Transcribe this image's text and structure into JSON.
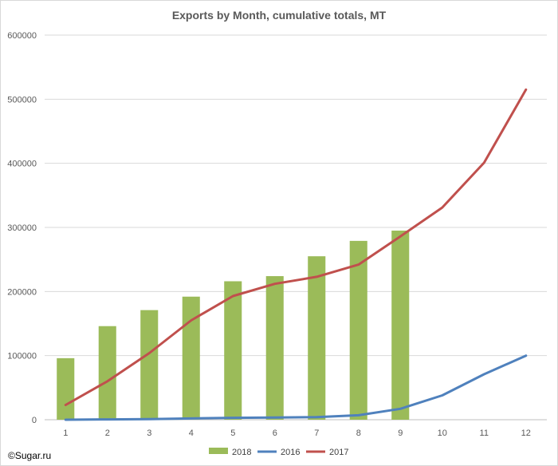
{
  "chart_data": {
    "type": "bar",
    "title": "Exports by Month, cumulative totals, MT",
    "xlabel": "",
    "ylabel": "",
    "categories": [
      "1",
      "2",
      "3",
      "4",
      "5",
      "6",
      "7",
      "8",
      "9",
      "10",
      "11",
      "12"
    ],
    "ylim": [
      0,
      600000
    ],
    "yticks": [
      0,
      100000,
      200000,
      300000,
      400000,
      500000,
      600000
    ],
    "grid": true,
    "legend_position": "bottom",
    "series": [
      {
        "name": "2018",
        "type": "bar",
        "color": "#9bbb59",
        "values": [
          96000,
          146000,
          171000,
          192000,
          216000,
          224000,
          255000,
          279000,
          295000,
          null,
          null,
          null
        ]
      },
      {
        "name": "2016",
        "type": "line",
        "color": "#4f81bd",
        "values": [
          0,
          500,
          1000,
          2000,
          3000,
          3500,
          4000,
          7000,
          17000,
          38000,
          71000,
          100000
        ]
      },
      {
        "name": "2017",
        "type": "line",
        "color": "#c0504d",
        "values": [
          23000,
          60000,
          104000,
          155000,
          193000,
          212000,
          223000,
          242000,
          286000,
          331000,
          401000,
          515000
        ]
      }
    ]
  },
  "credit": "©Sugar.ru"
}
